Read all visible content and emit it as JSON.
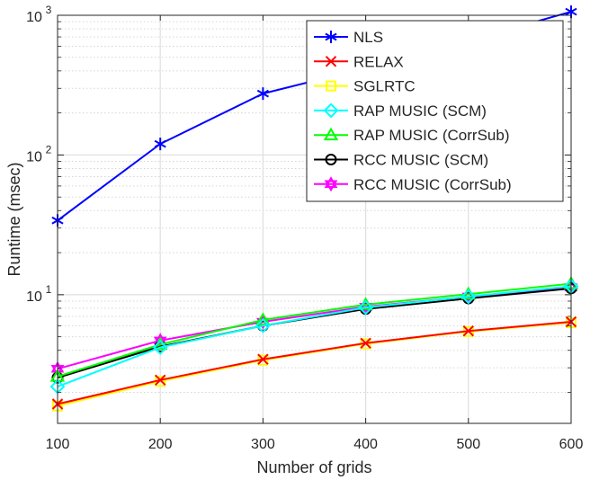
{
  "chart_data": {
    "type": "line",
    "title": "",
    "xlabel": "Number of grids",
    "ylabel": "Runtime (msec)",
    "xscale": "linear",
    "yscale": "log",
    "xlim": [
      100,
      600
    ],
    "ylim": [
      1.2,
      1000
    ],
    "x": [
      100,
      200,
      300,
      400,
      500,
      600
    ],
    "x_ticks": [
      "100",
      "200",
      "300",
      "400",
      "500",
      "600"
    ],
    "y_ticks": [
      {
        "value": 10,
        "base": "10",
        "exp": "1"
      },
      {
        "value": 100,
        "base": "10",
        "exp": "2"
      },
      {
        "value": 1000,
        "base": "10",
        "exp": "3"
      }
    ],
    "grid": true,
    "legend_position": "top-right",
    "series": [
      {
        "name": "NLS",
        "color": "#0000ff",
        "marker": "asterisk",
        "values": [
          34,
          120,
          275,
          420,
          660,
          1060
        ]
      },
      {
        "name": "RELAX",
        "color": "#ff0000",
        "marker": "x",
        "values": [
          1.65,
          2.45,
          3.45,
          4.5,
          5.5,
          6.4
        ]
      },
      {
        "name": "SGLRTC",
        "color": "#ffff00",
        "marker": "square",
        "values": [
          1.6,
          2.4,
          3.4,
          4.45,
          5.45,
          6.3
        ]
      },
      {
        "name": "RAP MUSIC (SCM)",
        "color": "#00ffff",
        "marker": "diamond",
        "values": [
          2.2,
          4.2,
          6.0,
          8.1,
          9.7,
          11.5
        ]
      },
      {
        "name": "RAP MUSIC (CorrSub)",
        "color": "#00ff00",
        "marker": "triangle",
        "values": [
          2.6,
          4.4,
          6.6,
          8.5,
          10.1,
          12.0
        ]
      },
      {
        "name": "RCC MUSIC (SCM)",
        "color": "#000000",
        "marker": "circle",
        "values": [
          2.55,
          4.25,
          6.0,
          7.9,
          9.4,
          11.1
        ]
      },
      {
        "name": "RCC MUSIC (CorrSub)",
        "color": "#ff00ff",
        "marker": "hexagram",
        "values": [
          2.95,
          4.7,
          6.4,
          8.2,
          9.7,
          11.3
        ]
      }
    ]
  }
}
